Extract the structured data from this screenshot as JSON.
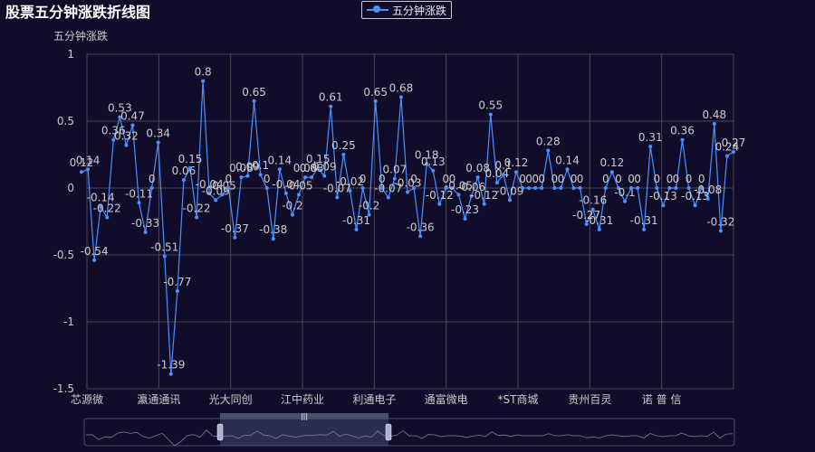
{
  "title": "股票五分钟涨跌折线图",
  "legend_label": "五分钟涨跌",
  "colors": {
    "background": "#100c2a",
    "series": "#4992ff",
    "grid": "#484753",
    "text": "#cccccc"
  },
  "chart_data": {
    "type": "line",
    "title": "股票五分钟涨跌折线图",
    "ylabel": "五分钟涨跌",
    "xlabel": "",
    "ylim": [
      -1.5,
      1
    ],
    "yticks": [
      1,
      0.5,
      0,
      -0.5,
      -1,
      -1.5
    ],
    "grid": true,
    "legend": "top-center",
    "x_tick_labels": [
      "芯源微",
      "瀛通通讯",
      "光大同创",
      "江中药业",
      "利通电子",
      "通富微电",
      "*ST商城",
      "贵州百灵",
      "诺 普 信"
    ],
    "series": [
      {
        "name": "五分钟涨跌",
        "values": [
          0.12,
          0.14,
          -0.54,
          -0.14,
          -0.22,
          0.36,
          0.53,
          0.32,
          0.47,
          -0.11,
          -0.33,
          0,
          0.34,
          -0.51,
          -1.39,
          -0.77,
          0.06,
          0.15,
          -0.22,
          0.8,
          -0.04,
          -0.09,
          -0.05,
          0,
          -0.37,
          0.08,
          0.09,
          0.65,
          0.1,
          0,
          -0.38,
          0.14,
          -0.04,
          -0.2,
          -0.05,
          0.08,
          0.08,
          0.15,
          0.09,
          0.61,
          -0.07,
          0.25,
          -0.02,
          -0.31,
          0,
          -0.2,
          0.65,
          0,
          -0.07,
          0.07,
          0.68,
          -0.03,
          0,
          -0.36,
          0.18,
          0.13,
          -0.12,
          0,
          0,
          -0.05,
          -0.23,
          -0.06,
          0.08,
          -0.12,
          0.55,
          0.04,
          0.1,
          -0.09,
          0.12,
          0,
          0,
          0,
          0,
          0.28,
          0,
          0,
          0.14,
          0,
          0,
          -0.27,
          -0.16,
          -0.31,
          0,
          0.12,
          0,
          -0.1,
          0,
          0,
          -0.31,
          0.31,
          0,
          -0.13,
          0,
          0,
          0.36,
          0,
          -0.13,
          0,
          -0.08,
          0.48,
          -0.32,
          0.24,
          0.27
        ]
      }
    ]
  }
}
